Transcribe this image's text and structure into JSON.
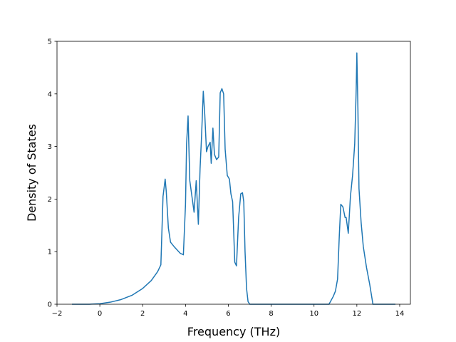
{
  "chart_data": {
    "type": "line",
    "title": "",
    "xlabel": "Frequency (THz)",
    "ylabel": "Density of States",
    "xlim": [
      -2,
      14.5
    ],
    "ylim": [
      0,
      5
    ],
    "xticks": [
      -2,
      0,
      2,
      4,
      6,
      8,
      10,
      12,
      14
    ],
    "yticks": [
      0,
      1,
      2,
      3,
      4,
      5
    ],
    "grid": false,
    "legend": "none",
    "line_color": "#1f77b4",
    "series": [
      {
        "x": [
          -1.3,
          -0.5,
          0,
          0.5,
          1.0,
          1.5,
          2.0,
          2.4,
          2.7,
          2.85,
          2.95,
          3.05,
          3.1,
          3.2,
          3.3,
          3.5,
          3.75,
          3.9,
          4.0,
          4.05,
          4.12,
          4.2,
          4.3,
          4.4,
          4.5,
          4.6,
          4.68,
          4.75,
          4.83,
          4.9,
          4.98,
          5.05,
          5.15,
          5.2,
          5.28,
          5.35,
          5.45,
          5.55,
          5.62,
          5.7,
          5.78,
          5.85,
          5.95,
          6.05,
          6.12,
          6.2,
          6.3,
          6.38,
          6.48,
          6.58,
          6.66,
          6.72,
          6.78,
          6.85,
          6.92,
          7.0,
          7.5,
          8.0,
          9.0,
          10.0,
          10.7,
          10.9,
          11.0,
          11.1,
          11.18,
          11.25,
          11.35,
          11.45,
          11.5,
          11.6,
          11.7,
          11.8,
          11.9,
          11.97,
          12.0,
          12.05,
          12.1,
          12.2,
          12.3,
          12.45,
          12.6,
          12.75,
          13.0,
          13.5,
          13.8
        ],
        "y": [
          0,
          0,
          0.01,
          0.04,
          0.09,
          0.17,
          0.3,
          0.45,
          0.62,
          0.75,
          2.05,
          2.38,
          2.15,
          1.45,
          1.18,
          1.08,
          0.97,
          0.94,
          1.9,
          3.05,
          3.58,
          2.35,
          2.05,
          1.75,
          2.35,
          1.52,
          2.58,
          3.2,
          4.05,
          3.6,
          2.9,
          3.0,
          3.08,
          2.68,
          3.35,
          2.85,
          2.75,
          2.8,
          4.02,
          4.1,
          4.0,
          2.95,
          2.45,
          2.38,
          2.1,
          1.95,
          0.8,
          0.73,
          1.65,
          2.1,
          2.12,
          1.95,
          1.0,
          0.3,
          0.05,
          0,
          0,
          0,
          0,
          0,
          0,
          0.15,
          0.25,
          0.48,
          1.3,
          1.9,
          1.85,
          1.65,
          1.65,
          1.35,
          2.05,
          2.45,
          3.05,
          4.1,
          4.78,
          3.7,
          2.2,
          1.55,
          1.1,
          0.7,
          0.38,
          0,
          0,
          0,
          0
        ]
      }
    ]
  }
}
